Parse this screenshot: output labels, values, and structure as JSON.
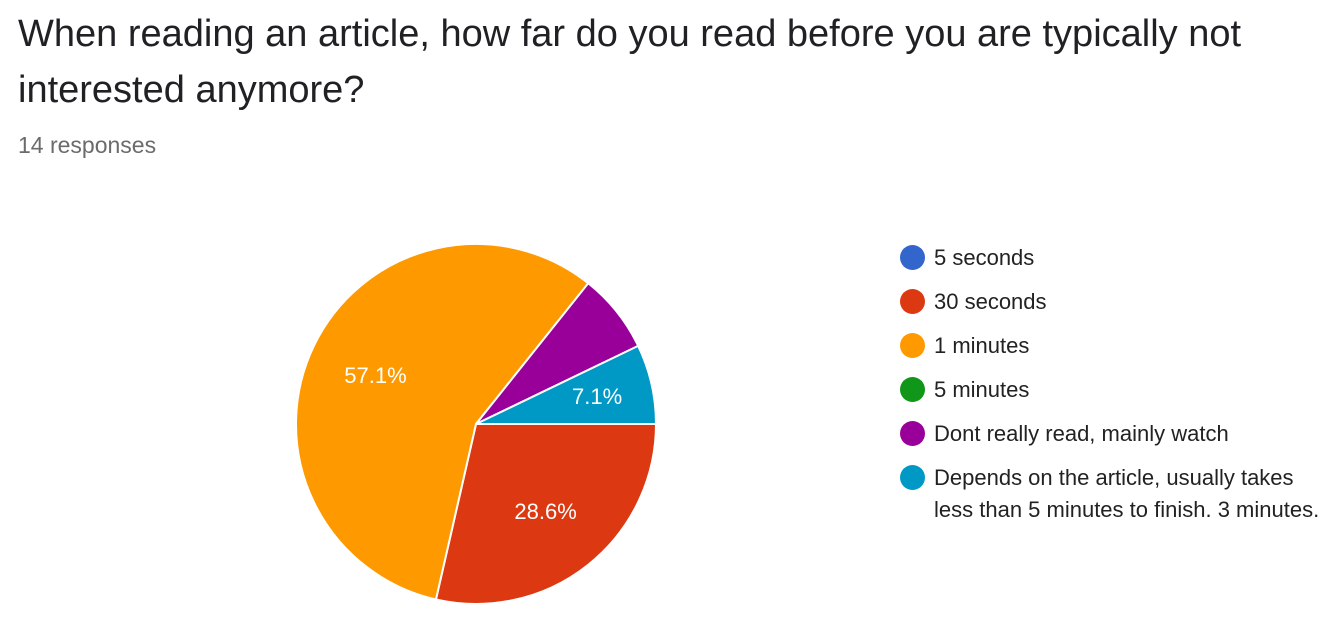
{
  "question": {
    "title": "When reading an article, how far do you read before you are typically not interested anymore?",
    "response_count": "14 responses"
  },
  "chart_data": {
    "type": "pie",
    "title": "When reading an article, how far do you read before you are typically not interested anymore?",
    "total_responses": 14,
    "legend_position": "right",
    "slices": [
      {
        "label": "5 seconds",
        "value": 0,
        "percent": 0.0,
        "percent_label": "",
        "color": "#3366cc"
      },
      {
        "label": "30 seconds",
        "value": 4,
        "percent": 28.6,
        "percent_label": "28.6%",
        "color": "#dc3912"
      },
      {
        "label": "1 minutes",
        "value": 8,
        "percent": 57.1,
        "percent_label": "57.1%",
        "color": "#ff9900"
      },
      {
        "label": "5 minutes",
        "value": 0,
        "percent": 0.0,
        "percent_label": "",
        "color": "#109618"
      },
      {
        "label": "Dont really read, mainly watch",
        "value": 1,
        "percent": 7.1,
        "percent_label": "",
        "color": "#990099"
      },
      {
        "label": "Depends on the article, usually takes less than 5 minutes to finish. 3 minutes.",
        "value": 1,
        "percent": 7.1,
        "percent_label": "7.1%",
        "color": "#0099c6"
      }
    ]
  }
}
